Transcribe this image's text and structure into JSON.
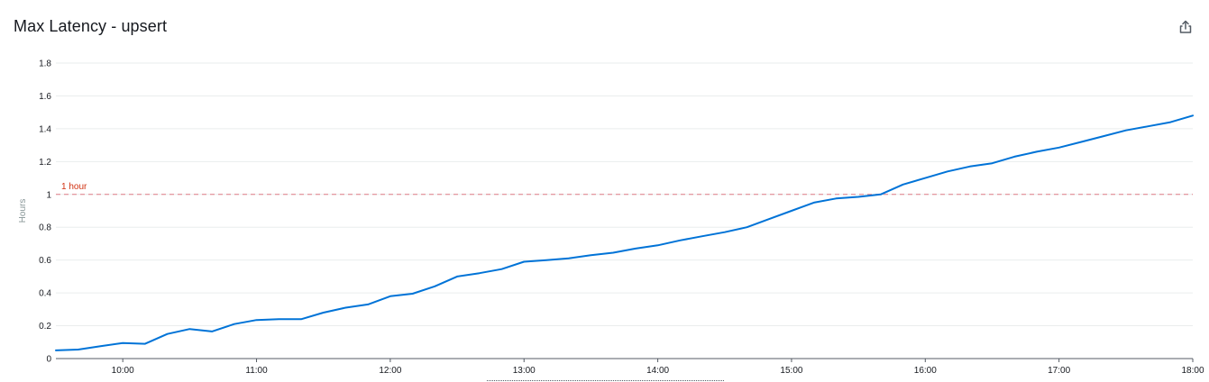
{
  "header": {
    "title": "Max Latency - upsert",
    "share_icon": "share-icon"
  },
  "chart_data": {
    "type": "line",
    "title": "Max Latency - upsert",
    "xlabel": "",
    "ylabel": "Hours",
    "xlim": [
      "09:30",
      "18:00"
    ],
    "ylim": [
      0,
      1.8
    ],
    "y_ticks": [
      "0",
      "0.2",
      "0.4",
      "0.6",
      "0.8",
      "1",
      "1.2",
      "1.4",
      "1.6",
      "1.8"
    ],
    "x_ticks": [
      "10:00",
      "11:00",
      "12:00",
      "13:00",
      "14:00",
      "15:00",
      "16:00",
      "17:00",
      "18:00"
    ],
    "grid": "horizontal",
    "line_color": "#0073d7",
    "threshold": {
      "value": 1,
      "label": "1 hour",
      "color": "#e07c85"
    },
    "x": [
      "09:30",
      "09:40",
      "09:50",
      "10:00",
      "10:10",
      "10:20",
      "10:30",
      "10:40",
      "10:50",
      "11:00",
      "11:10",
      "11:20",
      "11:30",
      "11:40",
      "11:50",
      "12:00",
      "12:10",
      "12:20",
      "12:30",
      "12:40",
      "12:50",
      "13:00",
      "13:10",
      "13:20",
      "13:30",
      "13:40",
      "13:50",
      "14:00",
      "14:10",
      "14:20",
      "14:30",
      "14:40",
      "14:50",
      "15:00",
      "15:10",
      "15:20",
      "15:30",
      "15:40",
      "15:50",
      "16:00",
      "16:10",
      "16:20",
      "16:30",
      "16:40",
      "16:50",
      "17:00",
      "17:10",
      "17:20",
      "17:30",
      "17:40",
      "17:50",
      "18:00"
    ],
    "series": [
      {
        "values": [
          0.05,
          0.055,
          0.075,
          0.095,
          0.09,
          0.15,
          0.18,
          0.165,
          0.21,
          0.235,
          0.24,
          0.24,
          0.28,
          0.31,
          0.33,
          0.38,
          0.395,
          0.44,
          0.5,
          0.52,
          0.545,
          0.59,
          0.6,
          0.61,
          0.63,
          0.645,
          0.67,
          0.69,
          0.72,
          0.745,
          0.77,
          0.8,
          0.85,
          0.9,
          0.95,
          0.975,
          0.985,
          1.0,
          1.06,
          1.1,
          1.14,
          1.17,
          1.19,
          1.23,
          1.26,
          1.285,
          1.32,
          1.355,
          1.39,
          1.415,
          1.44,
          1.48
        ]
      }
    ]
  }
}
